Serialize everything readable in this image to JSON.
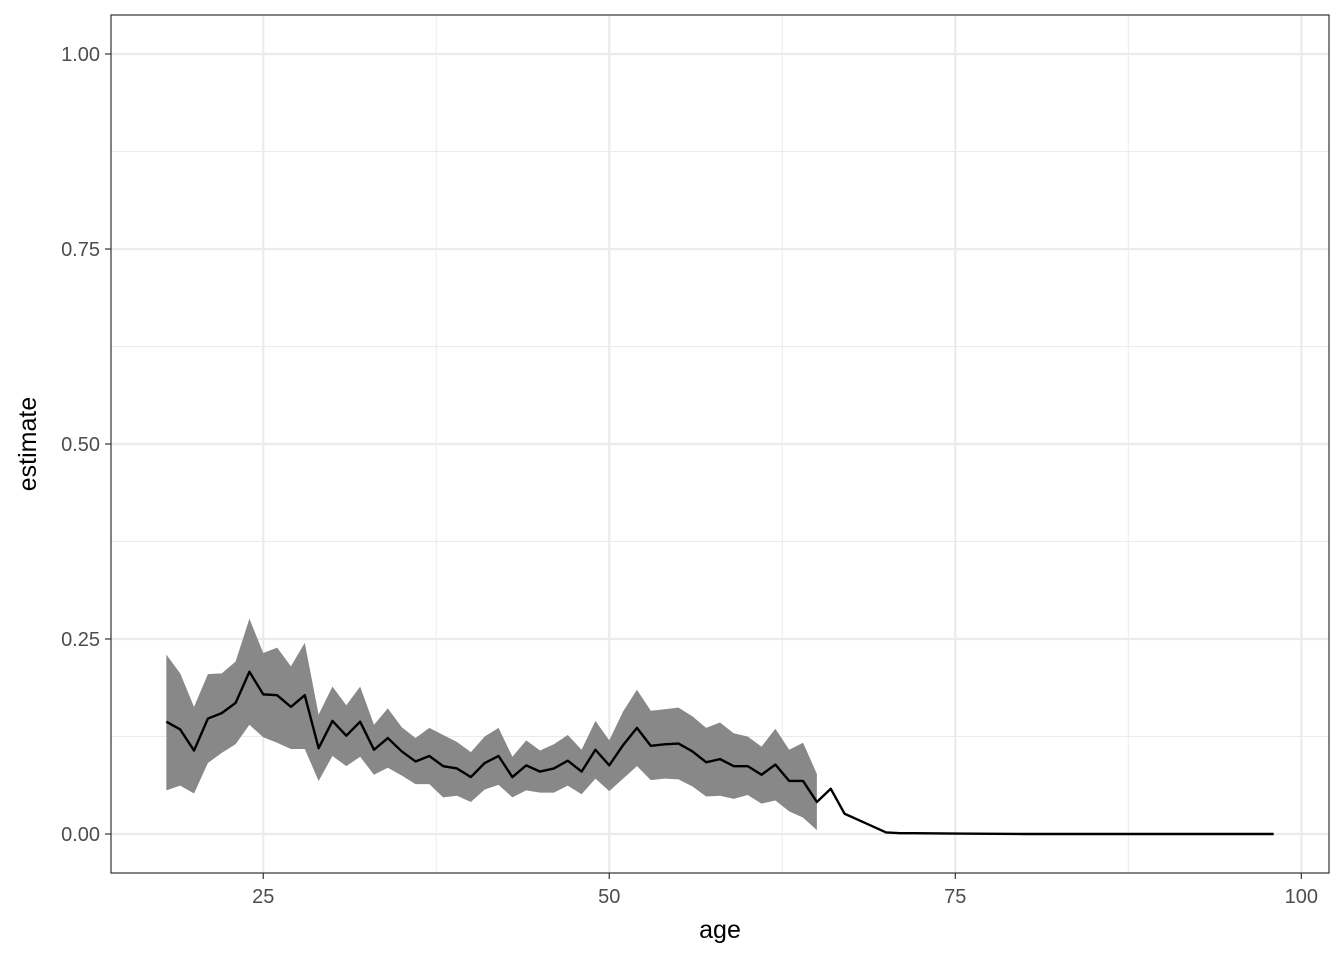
{
  "chart_data": {
    "type": "line",
    "xlabel": "age",
    "ylabel": "estimate",
    "xlim": [
      14,
      102
    ],
    "ylim": [
      -0.05,
      1.05
    ],
    "x_ticks": [
      25,
      50,
      75,
      100
    ],
    "x_tick_labels": [
      "25",
      "50",
      "75",
      "100"
    ],
    "x_minor_ticks": [
      12.5,
      37.5,
      62.5,
      87.5
    ],
    "y_ticks": [
      0,
      0.25,
      0.5,
      0.75,
      1
    ],
    "y_tick_labels": [
      "0.00",
      "0.25",
      "0.50",
      "0.75",
      "1.00"
    ],
    "y_minor_ticks": [
      0.125,
      0.375,
      0.625,
      0.875
    ],
    "grid": true,
    "theme": "bw",
    "colors": {
      "line": "#000000",
      "ribbon": "#888888",
      "grid": "#ebebeb",
      "border": "#333333"
    },
    "series": [
      {
        "x": [
          18,
          19,
          20,
          21,
          22,
          23,
          24,
          25,
          26,
          27,
          28,
          29,
          30,
          31,
          32,
          33,
          34,
          35,
          36,
          37,
          38,
          39,
          40,
          41,
          42,
          43,
          44,
          45,
          46,
          47,
          48,
          49,
          50,
          51,
          52,
          53,
          54,
          55,
          56,
          57,
          58,
          59,
          60,
          61,
          62,
          63,
          64,
          65,
          66,
          67,
          68,
          69,
          70,
          71,
          72,
          75,
          80,
          85,
          90,
          95,
          98
        ],
        "y": [
          0.144,
          0.134,
          0.107,
          0.148,
          0.155,
          0.168,
          0.208,
          0.179,
          0.178,
          0.163,
          0.178,
          0.11,
          0.145,
          0.126,
          0.144,
          0.108,
          0.123,
          0.106,
          0.093,
          0.1,
          0.087,
          0.084,
          0.073,
          0.091,
          0.1,
          0.073,
          0.088,
          0.08,
          0.084,
          0.094,
          0.08,
          0.108,
          0.088,
          0.114,
          0.136,
          0.113,
          0.115,
          0.116,
          0.106,
          0.092,
          0.096,
          0.087,
          0.087,
          0.076,
          0.089,
          0.068,
          0.068,
          0.041,
          0.058,
          0.026,
          0.018,
          0.01,
          0.002,
          0.001,
          0.001,
          0.0005,
          0,
          0,
          0,
          0,
          0
        ],
        "ribbon": {
          "x": [
            18,
            19,
            20,
            21,
            22,
            23,
            24,
            25,
            26,
            27,
            28,
            29,
            30,
            31,
            32,
            33,
            34,
            35,
            36,
            37,
            38,
            39,
            40,
            41,
            42,
            43,
            44,
            45,
            46,
            47,
            48,
            49,
            50,
            51,
            52,
            53,
            54,
            55,
            56,
            57,
            58,
            59,
            60,
            61,
            62,
            63,
            64,
            65
          ],
          "lower": [
            0.056,
            0.062,
            0.052,
            0.091,
            0.104,
            0.115,
            0.14,
            0.124,
            0.117,
            0.109,
            0.109,
            0.068,
            0.1,
            0.087,
            0.099,
            0.076,
            0.085,
            0.075,
            0.064,
            0.064,
            0.047,
            0.049,
            0.041,
            0.057,
            0.063,
            0.047,
            0.056,
            0.053,
            0.053,
            0.062,
            0.051,
            0.071,
            0.055,
            0.071,
            0.087,
            0.069,
            0.071,
            0.07,
            0.061,
            0.048,
            0.049,
            0.045,
            0.05,
            0.039,
            0.043,
            0.029,
            0.021,
            0.005
          ],
          "upper": [
            0.23,
            0.206,
            0.163,
            0.205,
            0.206,
            0.221,
            0.276,
            0.232,
            0.239,
            0.215,
            0.245,
            0.153,
            0.189,
            0.165,
            0.189,
            0.14,
            0.161,
            0.137,
            0.123,
            0.136,
            0.127,
            0.118,
            0.105,
            0.125,
            0.136,
            0.099,
            0.12,
            0.107,
            0.115,
            0.127,
            0.108,
            0.145,
            0.12,
            0.157,
            0.185,
            0.158,
            0.16,
            0.162,
            0.151,
            0.136,
            0.143,
            0.129,
            0.125,
            0.112,
            0.135,
            0.108,
            0.117,
            0.077
          ]
        }
      }
    ]
  }
}
